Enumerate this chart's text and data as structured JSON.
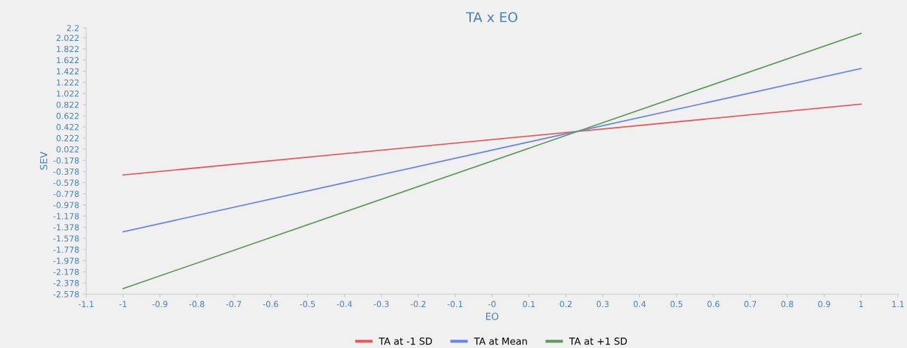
{
  "chart_data": {
    "type": "line",
    "title": "TA x EO",
    "xlabel": "EO",
    "ylabel": "SEV",
    "x": [
      -1,
      1
    ],
    "series": [
      {
        "name": "TA at -1 SD",
        "color": "#e8585a",
        "values": [
          -0.44,
          0.83
        ]
      },
      {
        "name": "TA at Mean",
        "color": "#6b84e8",
        "values": [
          -1.46,
          1.47
        ]
      },
      {
        "name": "TA at +1 SD",
        "color": "#5f9a5a",
        "values": [
          -2.48,
          2.1
        ]
      }
    ],
    "xlim": [
      -1.1,
      1.1
    ],
    "xticks": [
      -1.1,
      -1,
      -0.9,
      -0.8,
      -0.7,
      -0.6,
      -0.5,
      -0.4,
      -0.3,
      -0.2,
      -0.1,
      {
        "value": 0,
        "label": "-0"
      },
      0.1,
      0.2,
      0.3,
      0.4,
      0.5,
      0.6,
      0.7,
      0.8,
      0.9,
      1,
      1.1
    ],
    "ylim": [
      -2.578,
      2.2
    ],
    "yticks": [
      2.2,
      2.022,
      1.822,
      1.622,
      1.422,
      1.222,
      1.022,
      0.822,
      0.622,
      0.422,
      0.222,
      0.022,
      -0.178,
      -0.378,
      -0.578,
      -0.778,
      -0.978,
      -1.178,
      -1.378,
      -1.578,
      -1.778,
      -1.978,
      -2.178,
      -2.378,
      -2.578
    ],
    "grid": false,
    "legend": "bottom",
    "marker": "none",
    "line_style": "solid"
  }
}
